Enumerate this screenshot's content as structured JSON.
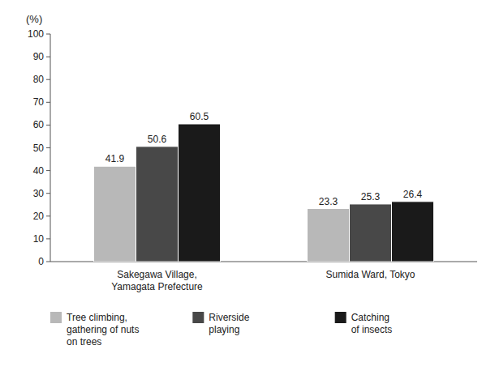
{
  "chart_data": {
    "type": "bar",
    "ylabel": "(%)",
    "categories": [
      "Sakegawa Village,\nYamagata Prefecture",
      "Sumida Ward, Tokyo"
    ],
    "series": [
      {
        "name": "Tree climbing,\ngathering of nuts\non trees",
        "color": "#b8b8b8",
        "values": [
          41.9,
          23.3
        ]
      },
      {
        "name": "Riverside\nplaying",
        "color": "#484848",
        "values": [
          50.6,
          25.3
        ]
      },
      {
        "name": "Catching\nof insects",
        "color": "#1a1a1a",
        "values": [
          60.5,
          26.4
        ]
      }
    ],
    "ylim": [
      0,
      100
    ],
    "yticks": [
      0,
      10,
      20,
      30,
      40,
      50,
      60,
      70,
      80,
      90,
      100
    ],
    "grid": false,
    "legend": "bottom",
    "data_labels": true
  }
}
